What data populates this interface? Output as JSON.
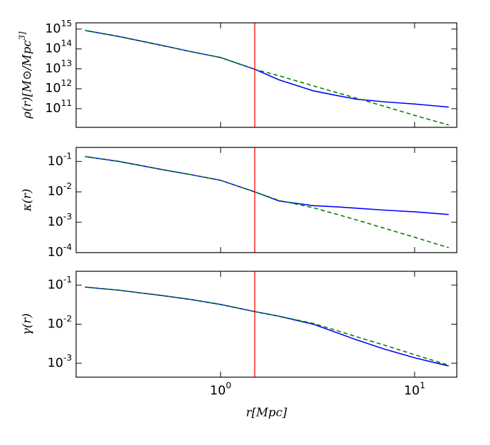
{
  "chart_data": [
    {
      "type": "line",
      "ylabel": "ρ(r)[M⊙/Mpc^3]",
      "xscale": "log",
      "yscale": "log",
      "xlim": [
        0.18,
        16.5
      ],
      "ylim": [
        11500000000.0,
        2050000000000000.0
      ],
      "xticks": [
        1,
        10
      ],
      "yticks": [
        {
          "value": 100000000000.0,
          "label": "10^11"
        },
        {
          "value": 1000000000000.0,
          "label": "10^12"
        },
        {
          "value": 10000000000000.0,
          "label": "10^13"
        },
        {
          "value": 100000000000000.0,
          "label": "10^14"
        },
        {
          "value": 1000000000000000.0,
          "label": "10^15"
        }
      ],
      "vline": {
        "x": 1.5,
        "color": "#ff0000"
      },
      "x": [
        0.2,
        0.3,
        0.5,
        0.7,
        1,
        1.5,
        2,
        3,
        4,
        5,
        7,
        10,
        15
      ],
      "series": [
        {
          "color": "#0000ff",
          "style": "solid",
          "values": [
            850000000000000.0,
            420000000000000.0,
            150000000000000.0,
            74000000000000.0,
            37000000000000.0,
            9500000000000.0,
            2800000000000.0,
            790000000000.0,
            450000000000.0,
            300000000000.0,
            220000000000.0,
            170000000000.0,
            120000000000.0
          ]
        },
        {
          "color": "#008000",
          "style": "dashed",
          "values": [
            850000000000000.0,
            420000000000000.0,
            150000000000000.0,
            74000000000000.0,
            37000000000000.0,
            9500000000000.0,
            4500000000000.0,
            1400000000000.0,
            630000000000.0,
            340000000000.0,
            130000000000.0,
            46000000000.0,
            15000000000.0
          ]
        }
      ]
    },
    {
      "type": "line",
      "ylabel": "κ(r)",
      "xscale": "log",
      "yscale": "log",
      "xlim": [
        0.18,
        16.5
      ],
      "ylim": [
        0.0001,
        0.29
      ],
      "xticks": [
        1,
        10
      ],
      "yticks": [
        {
          "value": 0.0001,
          "label": "10^-4"
        },
        {
          "value": 0.001,
          "label": "10^-3"
        },
        {
          "value": 0.01,
          "label": "10^-2"
        },
        {
          "value": 0.1,
          "label": "10^-1"
        }
      ],
      "vline": {
        "x": 1.5,
        "color": "#ff0000"
      },
      "x": [
        0.2,
        0.3,
        0.5,
        0.7,
        1,
        1.5,
        2,
        3,
        4,
        5,
        7,
        10,
        15
      ],
      "series": [
        {
          "color": "#0000ff",
          "style": "solid",
          "values": [
            0.145,
            0.1,
            0.054,
            0.037,
            0.024,
            0.01,
            0.005,
            0.0035,
            0.0032,
            0.0029,
            0.0025,
            0.0022,
            0.0018
          ]
        },
        {
          "color": "#008000",
          "style": "dashed",
          "values": [
            0.145,
            0.1,
            0.054,
            0.037,
            0.024,
            0.01,
            0.0052,
            0.003,
            0.0018,
            0.0012,
            0.00063,
            0.00032,
            0.000145
          ]
        }
      ]
    },
    {
      "type": "line",
      "ylabel": "γ(r)",
      "xlabel": "r[Mpc]",
      "xscale": "log",
      "yscale": "log",
      "xlim": [
        0.18,
        16.5
      ],
      "ylim": [
        0.00044,
        0.226
      ],
      "xticks": [
        {
          "value": 1,
          "label": "10^0"
        },
        {
          "value": 10,
          "label": "10^1"
        }
      ],
      "yticks": [
        {
          "value": 0.001,
          "label": "10^-3"
        },
        {
          "value": 0.01,
          "label": "10^-2"
        },
        {
          "value": 0.1,
          "label": "10^-1"
        }
      ],
      "vline": {
        "x": 1.5,
        "color": "#ff0000"
      },
      "x": [
        0.2,
        0.3,
        0.5,
        0.7,
        1,
        1.5,
        2,
        3,
        4,
        5,
        7,
        10,
        15
      ],
      "series": [
        {
          "color": "#0000ff",
          "style": "solid",
          "values": [
            0.089,
            0.074,
            0.054,
            0.043,
            0.032,
            0.021,
            0.016,
            0.01,
            0.006,
            0.004,
            0.0023,
            0.00138,
            0.00085
          ]
        },
        {
          "color": "#008000",
          "style": "dashed",
          "values": [
            0.089,
            0.074,
            0.054,
            0.043,
            0.032,
            0.021,
            0.016,
            0.0105,
            0.0068,
            0.0048,
            0.0029,
            0.00166,
            0.00089
          ]
        }
      ]
    }
  ]
}
